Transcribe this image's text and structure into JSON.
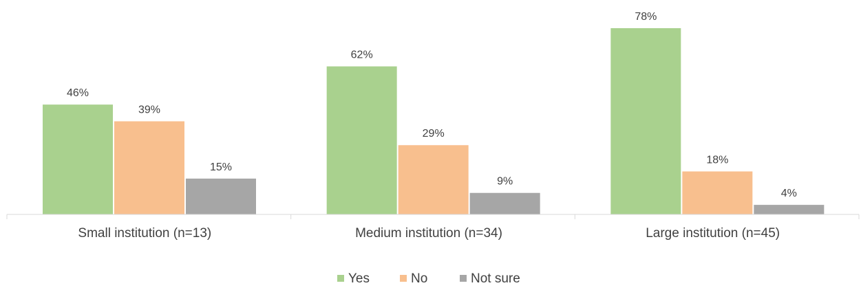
{
  "chart_data": {
    "type": "bar",
    "categories": [
      "Small institution (n=13)",
      "Medium institution (n=34)",
      "Large institution (n=45)"
    ],
    "series": [
      {
        "name": "Yes",
        "values": [
          46,
          62,
          78
        ],
        "labels": [
          "46%",
          "62%",
          "78%"
        ],
        "color": "#a9d18e"
      },
      {
        "name": "No",
        "values": [
          39,
          29,
          18
        ],
        "labels": [
          "39%",
          "29%",
          "18%"
        ],
        "color": "#f8bf8e"
      },
      {
        "name": "Not sure",
        "values": [
          15,
          9,
          4
        ],
        "labels": [
          "15%",
          "9%",
          "4%"
        ],
        "color": "#a6a6a6"
      }
    ],
    "unit": "%",
    "ylim": [
      0,
      80
    ],
    "grid": false,
    "legend_position": "bottom"
  },
  "colors": {
    "axis": "#d9d9d9",
    "text": "#404040"
  }
}
